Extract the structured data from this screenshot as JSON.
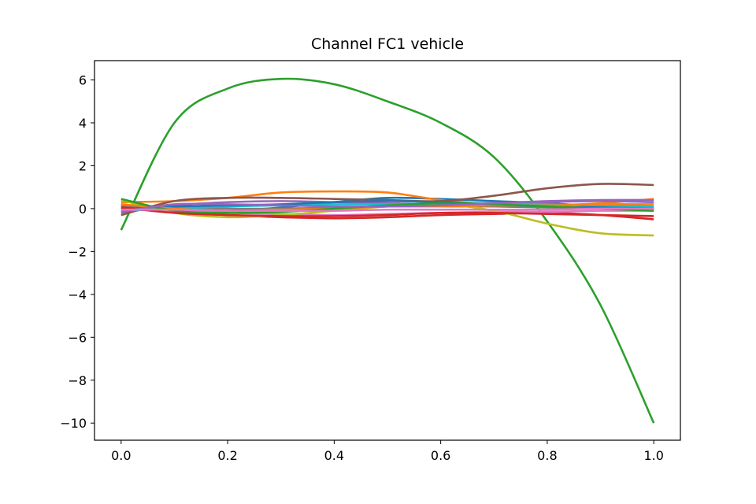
{
  "chart_data": {
    "type": "line",
    "title": "Channel FC1 vehicle",
    "xlabel": "",
    "ylabel": "",
    "xlim": [
      -0.05,
      1.05
    ],
    "ylim": [
      -10.8,
      6.9
    ],
    "xticks": [
      0.0,
      0.2,
      0.4,
      0.6,
      0.8,
      1.0
    ],
    "xtick_labels": [
      "0.0",
      "0.2",
      "0.4",
      "0.6",
      "0.8",
      "1.0"
    ],
    "yticks": [
      6,
      4,
      2,
      0,
      -2,
      -4,
      -6,
      -8,
      -10
    ],
    "ytick_labels": [
      "6",
      "4",
      "2",
      "0",
      "−2",
      "−4",
      "−6",
      "−8",
      "−10"
    ],
    "grid": false,
    "legend": "none",
    "x": [
      0.0,
      0.1,
      0.2,
      0.3,
      0.4,
      0.5,
      0.6,
      0.7,
      0.8,
      0.9,
      1.0
    ],
    "series": [
      {
        "color": "#1f77b4",
        "values": [
          0.2,
          -0.05,
          -0.1,
          0.05,
          0.3,
          0.5,
          0.45,
          0.35,
          0.25,
          0.1,
          0.0
        ]
      },
      {
        "color": "#ff7f0e",
        "values": [
          0.3,
          0.35,
          0.5,
          0.75,
          0.8,
          0.75,
          0.4,
          0.2,
          0.15,
          0.25,
          0.45
        ]
      },
      {
        "color": "#2ca02c",
        "values": [
          -1.0,
          4.0,
          5.6,
          6.05,
          5.8,
          5.0,
          4.0,
          2.4,
          -0.6,
          -4.5,
          -10.0
        ]
      },
      {
        "color": "#d62728",
        "values": [
          0.1,
          -0.15,
          -0.3,
          -0.4,
          -0.45,
          -0.4,
          -0.3,
          -0.25,
          -0.2,
          -0.3,
          -0.5
        ]
      },
      {
        "color": "#9467bd",
        "values": [
          -0.2,
          0.15,
          0.3,
          0.35,
          0.3,
          0.25,
          0.2,
          0.2,
          0.3,
          0.35,
          0.3
        ]
      },
      {
        "color": "#8c564b",
        "values": [
          -0.3,
          0.35,
          0.5,
          0.5,
          0.45,
          0.4,
          0.35,
          0.6,
          0.95,
          1.15,
          1.1
        ]
      },
      {
        "color": "#e377c2",
        "values": [
          0.0,
          -0.1,
          -0.2,
          -0.25,
          -0.3,
          -0.25,
          -0.2,
          -0.15,
          -0.15,
          -0.1,
          -0.1
        ]
      },
      {
        "color": "#7f7f7f",
        "values": [
          0.15,
          0.05,
          0.0,
          0.0,
          0.05,
          0.1,
          0.1,
          0.1,
          0.05,
          0.05,
          0.1
        ]
      },
      {
        "color": "#bcbd22",
        "values": [
          0.4,
          -0.2,
          -0.4,
          -0.3,
          -0.1,
          0.1,
          0.2,
          -0.1,
          -0.7,
          -1.15,
          -1.25
        ]
      },
      {
        "color": "#17becf",
        "values": [
          -0.1,
          0.0,
          0.1,
          0.15,
          0.2,
          0.2,
          0.25,
          0.25,
          0.2,
          0.15,
          0.1
        ]
      },
      {
        "color": "#1f77b4",
        "values": [
          0.0,
          0.1,
          0.15,
          0.2,
          0.3,
          0.35,
          0.3,
          0.2,
          0.1,
          0.05,
          0.0
        ]
      },
      {
        "color": "#ff7f0e",
        "values": [
          0.2,
          0.0,
          -0.1,
          -0.05,
          0.0,
          0.1,
          0.1,
          0.15,
          0.15,
          0.2,
          0.2
        ]
      },
      {
        "color": "#2ca02c",
        "values": [
          0.45,
          -0.1,
          -0.2,
          -0.15,
          0.0,
          0.15,
          0.25,
          0.2,
          0.1,
          0.0,
          -0.1
        ]
      },
      {
        "color": "#d62728",
        "values": [
          0.05,
          -0.2,
          -0.3,
          -0.35,
          -0.35,
          -0.3,
          -0.2,
          -0.2,
          -0.25,
          -0.3,
          -0.35
        ]
      },
      {
        "color": "#9467bd",
        "values": [
          -0.15,
          0.2,
          0.2,
          0.15,
          0.1,
          0.1,
          0.15,
          0.25,
          0.35,
          0.4,
          0.4
        ]
      },
      {
        "color": "#e377c2",
        "values": [
          -0.05,
          -0.05,
          -0.1,
          -0.1,
          -0.1,
          -0.05,
          -0.05,
          -0.05,
          -0.05,
          0.0,
          0.0
        ]
      }
    ]
  }
}
